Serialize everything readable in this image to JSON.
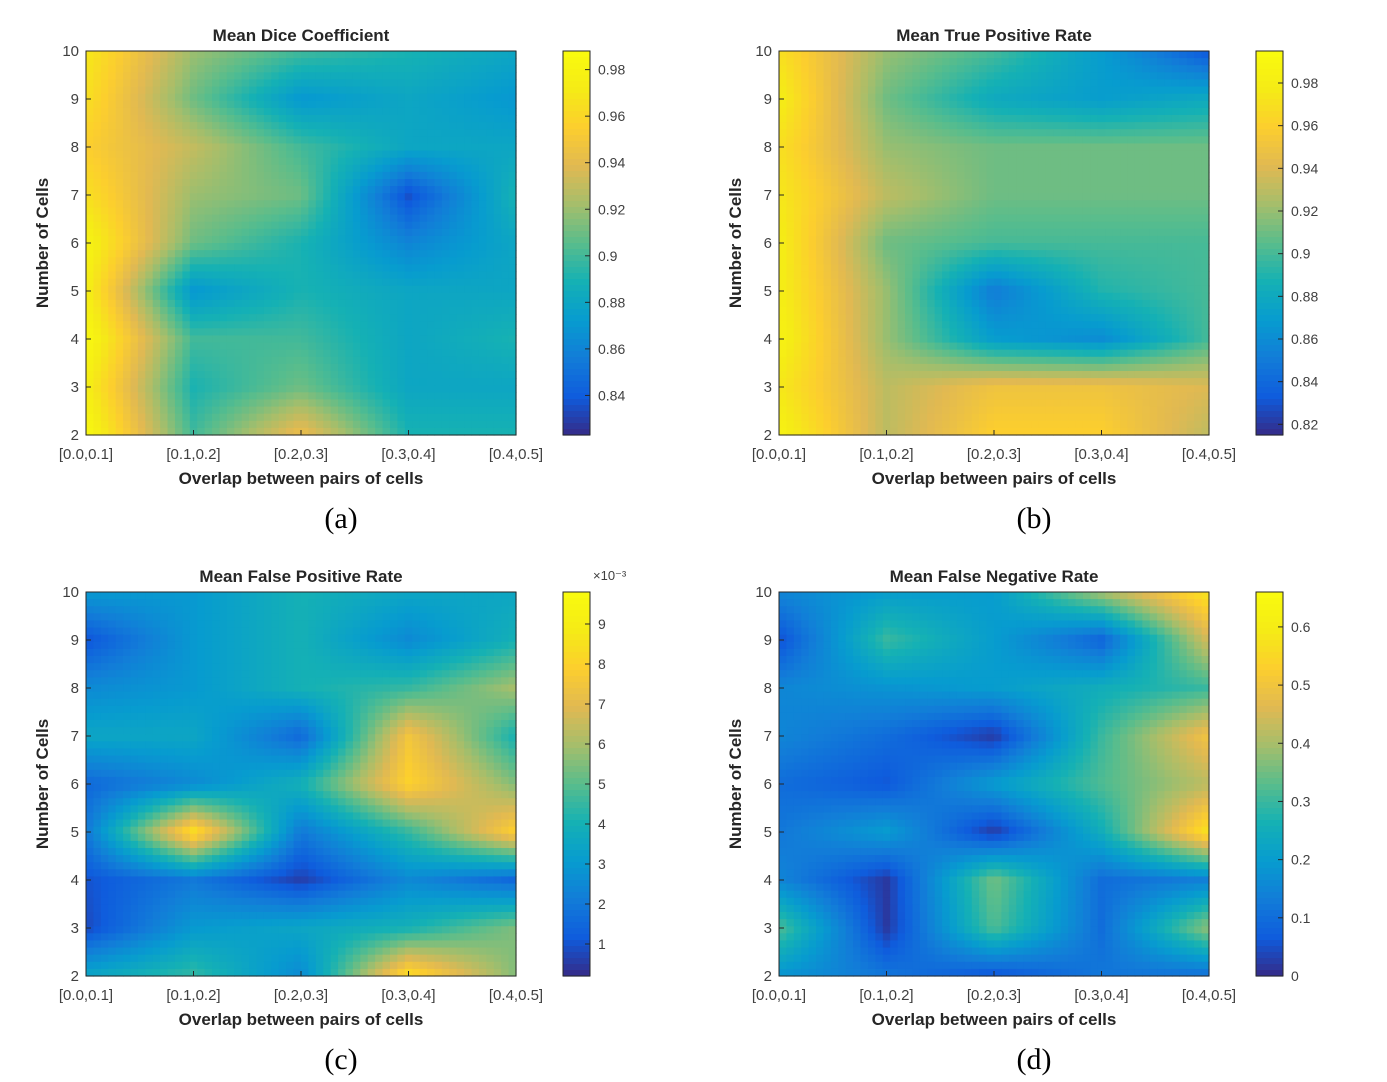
{
  "chart_data": [
    {
      "type": "heatmap",
      "panel_label": "(a)",
      "title": "Mean Dice Coefficient",
      "xlabel": "Overlap between pairs of cells",
      "ylabel": "Number of Cells",
      "x_categories": [
        "[0.0,0.1]",
        "[0.1,0.2]",
        "[0.2,0.3]",
        "[0.3,0.4]",
        "[0.4,0.5]"
      ],
      "y_values": [
        2,
        3,
        4,
        5,
        6,
        7,
        8,
        9,
        10
      ],
      "colorbar": {
        "range": [
          0.823,
          0.988
        ],
        "ticks": [
          0.84,
          0.86,
          0.88,
          0.9,
          0.92,
          0.94,
          0.96,
          0.98
        ],
        "tick_labels": [
          "0.84",
          "0.86",
          "0.88",
          "0.9",
          "0.92",
          "0.94",
          "0.96",
          "0.98"
        ],
        "exponent_label": ""
      },
      "z": [
        [
          0.985,
          0.9,
          0.945,
          0.89,
          0.89
        ],
        [
          0.975,
          0.89,
          0.91,
          0.88,
          0.88
        ],
        [
          0.985,
          0.9,
          0.9,
          0.88,
          0.89
        ],
        [
          0.975,
          0.87,
          0.89,
          0.88,
          0.88
        ],
        [
          0.98,
          0.91,
          0.89,
          0.86,
          0.88
        ],
        [
          0.965,
          0.92,
          0.91,
          0.835,
          0.89
        ],
        [
          0.955,
          0.93,
          0.9,
          0.88,
          0.88
        ],
        [
          0.965,
          0.91,
          0.87,
          0.88,
          0.87
        ],
        [
          0.97,
          0.92,
          0.9,
          0.89,
          0.88
        ]
      ]
    },
    {
      "type": "heatmap",
      "panel_label": "(b)",
      "title": "Mean True Positive Rate",
      "xlabel": "Overlap between pairs of cells",
      "ylabel": "Number of Cells",
      "x_categories": [
        "[0.0,0.1]",
        "[0.1,0.2]",
        "[0.2,0.3]",
        "[0.3,0.4]",
        "[0.4,0.5]"
      ],
      "y_values": [
        2,
        3,
        4,
        5,
        6,
        7,
        8,
        9,
        10
      ],
      "colorbar": {
        "range": [
          0.815,
          0.995
        ],
        "ticks": [
          0.82,
          0.84,
          0.86,
          0.88,
          0.9,
          0.92,
          0.94,
          0.96,
          0.98
        ],
        "tick_labels": [
          "0.82",
          "0.84",
          "0.86",
          "0.88",
          "0.9",
          "0.92",
          "0.94",
          "0.96",
          "0.98"
        ],
        "exponent_label": ""
      },
      "z": [
        [
          0.985,
          0.93,
          0.96,
          0.96,
          0.93
        ],
        [
          0.975,
          0.93,
          0.95,
          0.95,
          0.94
        ],
        [
          0.985,
          0.92,
          0.87,
          0.86,
          0.9
        ],
        [
          0.98,
          0.92,
          0.85,
          0.89,
          0.9
        ],
        [
          0.98,
          0.91,
          0.9,
          0.9,
          0.9
        ],
        [
          0.975,
          0.93,
          0.91,
          0.91,
          0.91
        ],
        [
          0.97,
          0.92,
          0.91,
          0.91,
          0.91
        ],
        [
          0.98,
          0.91,
          0.88,
          0.87,
          0.88
        ],
        [
          0.97,
          0.92,
          0.9,
          0.87,
          0.83
        ]
      ]
    },
    {
      "type": "heatmap",
      "panel_label": "(c)",
      "title": "Mean False Positive Rate",
      "xlabel": "Overlap between pairs of cells",
      "ylabel": "Number of Cells",
      "x_categories": [
        "[0.0,0.1]",
        "[0.1,0.2]",
        "[0.2,0.3]",
        "[0.3,0.4]",
        "[0.4,0.5]"
      ],
      "y_values": [
        2,
        3,
        4,
        5,
        6,
        7,
        8,
        9,
        10
      ],
      "colorbar": {
        "range": [
          0.0002,
          0.0098
        ],
        "ticks": [
          0.001,
          0.002,
          0.003,
          0.004,
          0.005,
          0.006,
          0.007,
          0.008,
          0.009
        ],
        "tick_labels": [
          "1",
          "2",
          "3",
          "4",
          "5",
          "6",
          "7",
          "8",
          "9"
        ],
        "exponent_label": "×10⁻³"
      },
      "z": [
        [
          0.0035,
          0.0045,
          0.0025,
          0.0085,
          0.0055
        ],
        [
          0.0008,
          0.003,
          0.0035,
          0.004,
          0.0055
        ],
        [
          0.001,
          0.002,
          0.0006,
          0.0025,
          0.0015
        ],
        [
          0.002,
          0.0085,
          0.002,
          0.0045,
          0.008
        ],
        [
          0.0015,
          0.0025,
          0.004,
          0.008,
          0.0055
        ],
        [
          0.0035,
          0.0035,
          0.0015,
          0.0075,
          0.004
        ],
        [
          0.0025,
          0.003,
          0.004,
          0.0045,
          0.006
        ],
        [
          0.001,
          0.003,
          0.004,
          0.0025,
          0.004
        ],
        [
          0.003,
          0.003,
          0.004,
          0.0035,
          0.0035
        ]
      ]
    },
    {
      "type": "heatmap",
      "panel_label": "(d)",
      "title": "Mean False Negative Rate",
      "xlabel": "Overlap between pairs of cells",
      "ylabel": "Number of Cells",
      "x_categories": [
        "[0.0,0.1]",
        "[0.1,0.2]",
        "[0.2,0.3]",
        "[0.3,0.4]",
        "[0.4,0.5]"
      ],
      "y_values": [
        2,
        3,
        4,
        5,
        6,
        7,
        8,
        9,
        10
      ],
      "colorbar": {
        "range": [
          0.0,
          0.66
        ],
        "ticks": [
          0,
          0.1,
          0.2,
          0.3,
          0.4,
          0.5,
          0.6
        ],
        "tick_labels": [
          "0",
          "0.1",
          "0.2",
          "0.3",
          "0.4",
          "0.5",
          "0.6"
        ],
        "exponent_label": ""
      },
      "z": [
        [
          0.18,
          0.12,
          0.05,
          0.12,
          0.1
        ],
        [
          0.32,
          0.02,
          0.32,
          0.1,
          0.38
        ],
        [
          0.15,
          0.02,
          0.35,
          0.1,
          0.14
        ],
        [
          0.12,
          0.2,
          0.02,
          0.25,
          0.58
        ],
        [
          0.1,
          0.06,
          0.2,
          0.32,
          0.42
        ],
        [
          0.15,
          0.1,
          0.02,
          0.3,
          0.5
        ],
        [
          0.15,
          0.18,
          0.2,
          0.25,
          0.3
        ],
        [
          0.05,
          0.3,
          0.2,
          0.08,
          0.45
        ],
        [
          0.15,
          0.2,
          0.2,
          0.4,
          0.58
        ]
      ]
    }
  ]
}
